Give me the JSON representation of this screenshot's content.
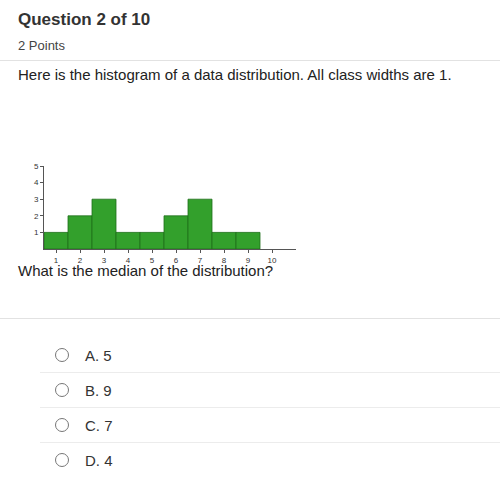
{
  "header": {
    "question": "Question 2 of 10",
    "points": "2 Points"
  },
  "prompt": "Here is the histogram of a data distribution. All class widths are 1.",
  "chart_data": {
    "type": "histogram",
    "bins": [
      0.5,
      1.5,
      2.5,
      3.5,
      4.5,
      5.5,
      6.5,
      7.5,
      8.5,
      9.5
    ],
    "values": [
      1,
      2,
      3,
      1,
      1,
      2,
      3,
      1,
      1
    ],
    "color": "#33a02c",
    "xlim": [
      0.5,
      11
    ],
    "xticks": [
      1,
      2,
      3,
      4,
      5,
      6,
      7,
      8,
      9,
      10
    ],
    "ylim": [
      0,
      5
    ],
    "yticks": [
      1,
      2,
      3,
      4,
      5
    ],
    "grid": false
  },
  "question": "What is the median of the distribution?",
  "options": [
    "A. 5",
    "B. 9",
    "C. 7",
    "D. 4"
  ]
}
